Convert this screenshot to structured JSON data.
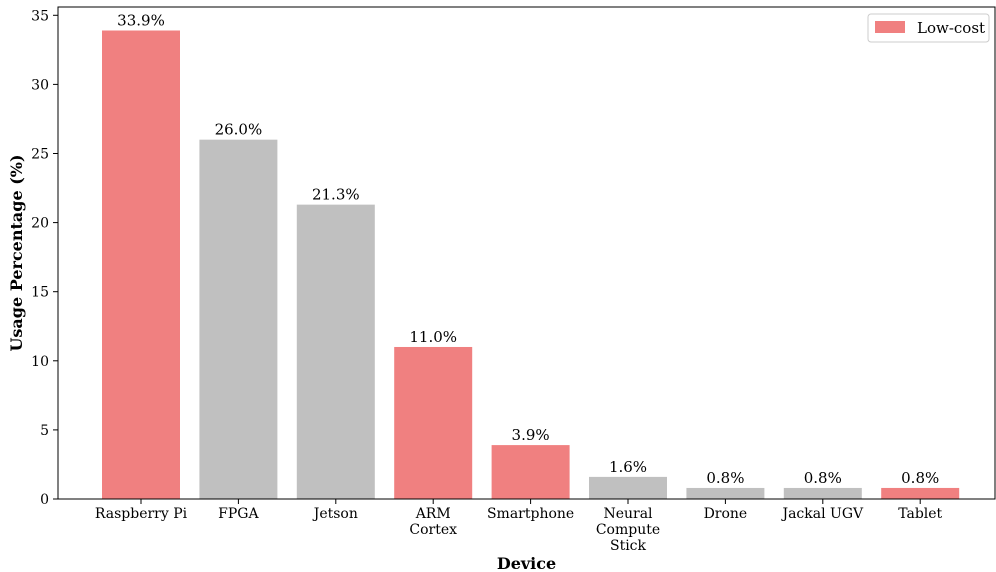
{
  "chart_data": {
    "type": "bar",
    "categories": [
      [
        "Raspberry Pi"
      ],
      [
        "FPGA"
      ],
      [
        "Jetson"
      ],
      [
        "ARM",
        "Cortex"
      ],
      [
        "Smartphone"
      ],
      [
        "Neural",
        "Compute",
        "Stick"
      ],
      [
        "Drone"
      ],
      [
        "Jackal UGV"
      ],
      [
        "Tablet"
      ]
    ],
    "values": [
      33.9,
      26.0,
      21.3,
      11.0,
      3.9,
      1.6,
      0.8,
      0.8,
      0.8
    ],
    "data_labels": [
      "33.9%",
      "26.0%",
      "21.3%",
      "11.0%",
      "3.9%",
      "1.6%",
      "0.8%",
      "0.8%",
      "0.8%"
    ],
    "low_cost": [
      true,
      false,
      false,
      true,
      true,
      false,
      false,
      false,
      true
    ],
    "xlabel": "Device",
    "ylabel": "Usage Percentage (%)",
    "ylim": [
      0,
      35.6
    ],
    "yticks": [
      0,
      5,
      10,
      15,
      20,
      25,
      30,
      35
    ],
    "legend": {
      "position": "top-right",
      "entries": [
        {
          "label": "Low-cost",
          "color": "#f08080"
        }
      ]
    },
    "colors": {
      "low_cost": "#f08080",
      "other": "#c0c0c0"
    },
    "grid": false
  }
}
